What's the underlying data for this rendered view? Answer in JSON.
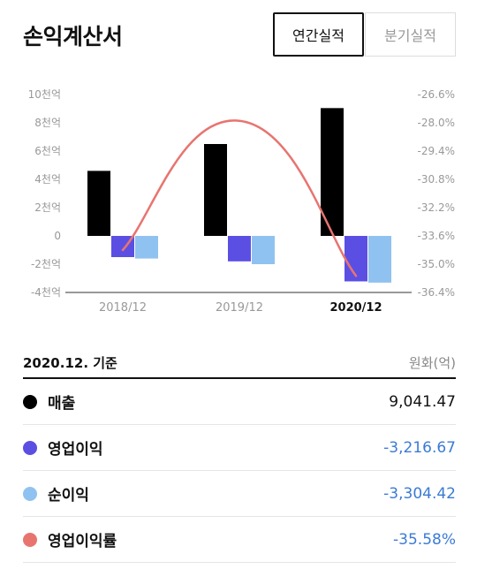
{
  "header": {
    "title": "손익계산서",
    "tabs": [
      {
        "label": "연간실적",
        "active": true
      },
      {
        "label": "분기실적",
        "active": false
      }
    ]
  },
  "colors": {
    "revenue": "#000000",
    "operating_income": "#5b4fe3",
    "net_income": "#8fc2f0",
    "operating_margin": "#e87470",
    "negative_value": "#3a7bd5"
  },
  "chart_data": {
    "type": "bar",
    "categories": [
      "2018/12",
      "2019/12",
      "2020/12"
    ],
    "highlight_category": "2020/12",
    "series": [
      {
        "name": "매출",
        "type": "bar",
        "axis": "left",
        "color": "#000000",
        "values": [
          4600,
          6500,
          9041.47
        ]
      },
      {
        "name": "영업이익",
        "type": "bar",
        "axis": "left",
        "color": "#5b4fe3",
        "values": [
          -1500,
          -1800,
          -3216.67
        ]
      },
      {
        "name": "순이익",
        "type": "bar",
        "axis": "left",
        "color": "#8fc2f0",
        "values": [
          -1600,
          -2000,
          -3304.42
        ]
      },
      {
        "name": "영업이익률",
        "type": "line",
        "axis": "right",
        "color": "#e87470",
        "values": [
          -34.3,
          -27.9,
          -35.58
        ]
      }
    ],
    "left_axis": {
      "ylim": [
        -4000,
        10000
      ],
      "ticks": [
        10000,
        8000,
        6000,
        4000,
        2000,
        0,
        -2000,
        -4000
      ],
      "tick_labels": [
        "10천억",
        "8천억",
        "6천억",
        "4천억",
        "2천억",
        "0",
        "-2천억",
        "-4천억"
      ]
    },
    "right_axis": {
      "ylim": [
        -36.4,
        -26.6
      ],
      "ticks": [
        -26.6,
        -28.0,
        -29.4,
        -30.8,
        -32.2,
        -33.6,
        -35.0,
        -36.4
      ],
      "tick_labels": [
        "-26.6%",
        "-28.0%",
        "-29.4%",
        "-30.8%",
        "-32.2%",
        "-33.6%",
        "-35.0%",
        "-36.4%"
      ]
    },
    "grid": false
  },
  "table": {
    "basis": "2020.12. 기준",
    "unit": "원화(억)",
    "rows": [
      {
        "name": "매출",
        "value": "9,041.47",
        "negative": false,
        "color": "#000000"
      },
      {
        "name": "영업이익",
        "value": "-3,216.67",
        "negative": true,
        "color": "#5b4fe3"
      },
      {
        "name": "순이익",
        "value": "-3,304.42",
        "negative": true,
        "color": "#8fc2f0"
      },
      {
        "name": "영업이익률",
        "value": "-35.58%",
        "negative": true,
        "color": "#e87470"
      }
    ]
  }
}
